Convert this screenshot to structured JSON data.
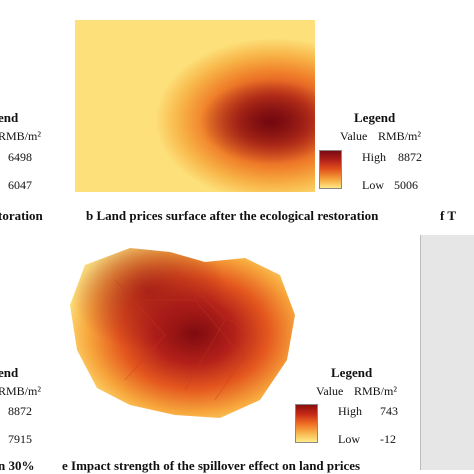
{
  "panel_b": {
    "caption": "b   Land prices surface after the ecological restoration",
    "legend": {
      "title": "Legend",
      "value_label": "Value",
      "unit": "RMB/m²",
      "high_label": "High",
      "high_value": "8872",
      "low_label": "Low",
      "low_value": "5006"
    },
    "colors": {
      "high": "#7a0a12",
      "low": "#ffe783"
    }
  },
  "panel_e": {
    "caption": "e   Impact strength of the spillover effect on land prices",
    "legend": {
      "title": "Legend",
      "value_label": "Value",
      "unit": "RMB/m²",
      "high_label": "High",
      "high_value": "743",
      "low_label": "Low",
      "low_value": "-12"
    },
    "colors": {
      "high": "#8b0d0d",
      "low": "#ffec8a"
    }
  },
  "left_cut": {
    "legend_fragment_top": "end",
    "unit_fragment_top": "RMB/m²",
    "value_top_1": "6498",
    "value_top_2": "6047",
    "caption_fragment_top": "toration",
    "legend_fragment_bottom": "end",
    "unit_fragment_bottom": "RMB/m²",
    "value_bottom_1": "8872",
    "value_bottom_2": "7915",
    "caption_fragment_bottom": "n 30%"
  },
  "right_cut": {
    "caption_fragment": "f   T"
  }
}
